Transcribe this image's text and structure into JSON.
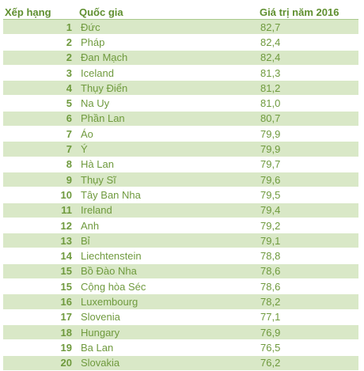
{
  "header": {
    "rank": "Xếp hạng",
    "country": "Quốc gia",
    "value": "Giá trị năm 2016"
  },
  "rows": [
    {
      "rank": "1",
      "country": "Đức",
      "value": "82,7"
    },
    {
      "rank": "2",
      "country": "Pháp",
      "value": "82,4"
    },
    {
      "rank": "2",
      "country": "Đan Mạch",
      "value": "82,4"
    },
    {
      "rank": "3",
      "country": "Iceland",
      "value": "81,3"
    },
    {
      "rank": "4",
      "country": "Thụy Điển",
      "value": "81,2"
    },
    {
      "rank": "5",
      "country": "Na Uy",
      "value": "81,0"
    },
    {
      "rank": "6",
      "country": "Phần Lan",
      "value": "80,7"
    },
    {
      "rank": "7",
      "country": "Áo",
      "value": "79,9"
    },
    {
      "rank": "7",
      "country": "Ý",
      "value": "79,9"
    },
    {
      "rank": "8",
      "country": "Hà Lan",
      "value": "79,7"
    },
    {
      "rank": "9",
      "country": "Thụy Sĩ",
      "value": "79,6"
    },
    {
      "rank": "10",
      "country": "Tây Ban Nha",
      "value": "79,5"
    },
    {
      "rank": "11",
      "country": "Ireland",
      "value": "79,4"
    },
    {
      "rank": "12",
      "country": "Anh",
      "value": "79,2"
    },
    {
      "rank": "13",
      "country": "Bỉ",
      "value": "79,1"
    },
    {
      "rank": "14",
      "country": "Liechtenstein",
      "value": "78,8"
    },
    {
      "rank": "15",
      "country": "Bồ Đào Nha",
      "value": "78,6"
    },
    {
      "rank": "15",
      "country": "Cộng hòa Séc",
      "value": "78,6"
    },
    {
      "rank": "16",
      "country": "Luxembourg",
      "value": "78,2"
    },
    {
      "rank": "17",
      "country": "Slovenia",
      "value": "77,1"
    },
    {
      "rank": "18",
      "country": "Hungary",
      "value": "76,9"
    },
    {
      "rank": "19",
      "country": "Ba Lan",
      "value": "76,5"
    },
    {
      "rank": "20",
      "country": "Slovakia",
      "value": "76,2"
    }
  ]
}
